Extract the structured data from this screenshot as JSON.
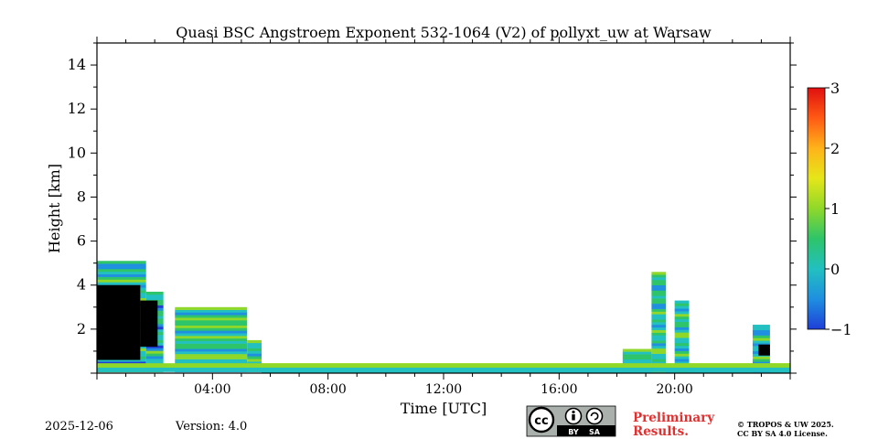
{
  "chart_data": {
    "type": "heatmap",
    "title": "Quasi BSC Angstroem Exponent 532-1064 (V2) of pollyxt_uw at Warsaw",
    "xlabel": "Time [UTC]",
    "ylabel": "Height [km]",
    "xlim": [
      0,
      24
    ],
    "ylim": [
      0,
      15
    ],
    "x_ticks": [
      {
        "value": 4,
        "label": "04:00"
      },
      {
        "value": 8,
        "label": "08:00"
      },
      {
        "value": 12,
        "label": "12:00"
      },
      {
        "value": 16,
        "label": "16:00"
      },
      {
        "value": 20,
        "label": "20:00"
      }
    ],
    "y_ticks": [
      {
        "value": 2,
        "label": "2"
      },
      {
        "value": 4,
        "label": "4"
      },
      {
        "value": 6,
        "label": "6"
      },
      {
        "value": 8,
        "label": "8"
      },
      {
        "value": 10,
        "label": "10"
      },
      {
        "value": 12,
        "label": "12"
      },
      {
        "value": 14,
        "label": "14"
      }
    ],
    "colorbar": {
      "min": -1,
      "max": 3,
      "ticks": [
        {
          "value": 3,
          "label": "3"
        },
        {
          "value": 2,
          "label": "2"
        },
        {
          "value": 1,
          "label": "1"
        },
        {
          "value": 0,
          "label": "0"
        },
        {
          "value": -1,
          "label": "−1"
        }
      ],
      "stops": [
        "#1f3fd8",
        "#1f8fe0",
        "#22c0c0",
        "#2ec46a",
        "#8fd82a",
        "#e6e61a",
        "#ffb31a",
        "#ff5a14",
        "#e01010"
      ]
    },
    "regions": [
      {
        "x0": 0.0,
        "x1": 1.7,
        "y0": 0.05,
        "y1": 5.1,
        "value": 0.1
      },
      {
        "x0": 1.7,
        "x1": 2.3,
        "y0": 0.05,
        "y1": 3.7,
        "value": 0.0
      },
      {
        "x0": 2.7,
        "x1": 5.2,
        "y0": 0.05,
        "y1": 3.0,
        "value": 0.4
      },
      {
        "x0": 5.2,
        "x1": 5.7,
        "y0": 0.05,
        "y1": 1.5,
        "value": 0.2
      },
      {
        "x0": 5.7,
        "x1": 24.0,
        "y0": 0.0,
        "y1": 0.45,
        "value": 0.3
      },
      {
        "x0": 18.2,
        "x1": 19.2,
        "y0": 0.05,
        "y1": 1.1,
        "value": 0.6
      },
      {
        "x0": 19.2,
        "x1": 19.7,
        "y0": 0.05,
        "y1": 4.6,
        "value": 0.2
      },
      {
        "x0": 20.0,
        "x1": 20.5,
        "y0": 0.05,
        "y1": 3.3,
        "value": 0.2
      },
      {
        "x0": 22.7,
        "x1": 23.3,
        "y0": 0.05,
        "y1": 2.2,
        "value": 0.0
      }
    ],
    "missing_regions": [
      {
        "x0": 0.0,
        "x1": 1.5,
        "y0": 0.6,
        "y1": 4.0
      },
      {
        "x0": 1.5,
        "x1": 2.1,
        "y0": 1.2,
        "y1": 3.3
      },
      {
        "x0": 22.9,
        "x1": 23.3,
        "y0": 0.8,
        "y1": 1.3
      }
    ]
  },
  "footer": {
    "date": "2025-12-06",
    "version": "Version: 4.0",
    "license_badge": {
      "cc": "cc",
      "by": "BY",
      "sa": "SA"
    },
    "preliminary_line1": "Preliminary",
    "preliminary_line2": "Results.",
    "copyright_line1": "© TROPOS & UW 2025.",
    "copyright_line2": "CC BY SA 4.0 License."
  },
  "colors": {
    "preliminary": "#e03030",
    "axis": "#000000"
  }
}
